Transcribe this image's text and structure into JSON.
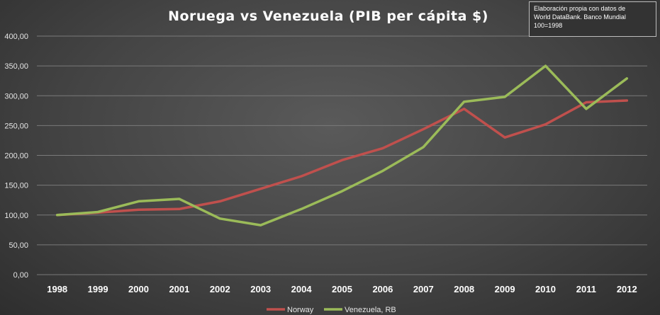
{
  "chart_data": {
    "type": "line",
    "title": "Noruega vs Venezuela (PIB per cápita $)",
    "xlabel": "",
    "ylabel": "",
    "categories": [
      "1998",
      "1999",
      "2000",
      "2001",
      "2002",
      "2003",
      "2004",
      "2005",
      "2006",
      "2007",
      "2008",
      "2009",
      "2010",
      "2011",
      "2012"
    ],
    "ylim": [
      0,
      400
    ],
    "yticks": [
      0,
      50,
      100,
      150,
      200,
      250,
      300,
      350,
      400
    ],
    "ytick_labels": [
      "0,00",
      "50,00",
      "100,00",
      "150,00",
      "200,00",
      "250,00",
      "300,00",
      "350,00",
      "400,00"
    ],
    "grid": true,
    "legend_position": "bottom",
    "series": [
      {
        "name": "Norway",
        "color": "#c0504d",
        "values": [
          100,
          104,
          109,
          110,
          123,
          144,
          165,
          192,
          212,
          244,
          278,
          230,
          252,
          289,
          292
        ]
      },
      {
        "name": "Venezuela, RB",
        "color": "#9bbb59",
        "values": [
          100,
          105,
          123,
          127,
          94,
          83,
          110,
          140,
          174,
          214,
          290,
          298,
          350,
          278,
          329
        ]
      }
    ]
  },
  "note": {
    "lines": [
      "Elaboración propia con datos de",
      "World DataBank. Banco Mundial",
      "100=1998"
    ]
  }
}
